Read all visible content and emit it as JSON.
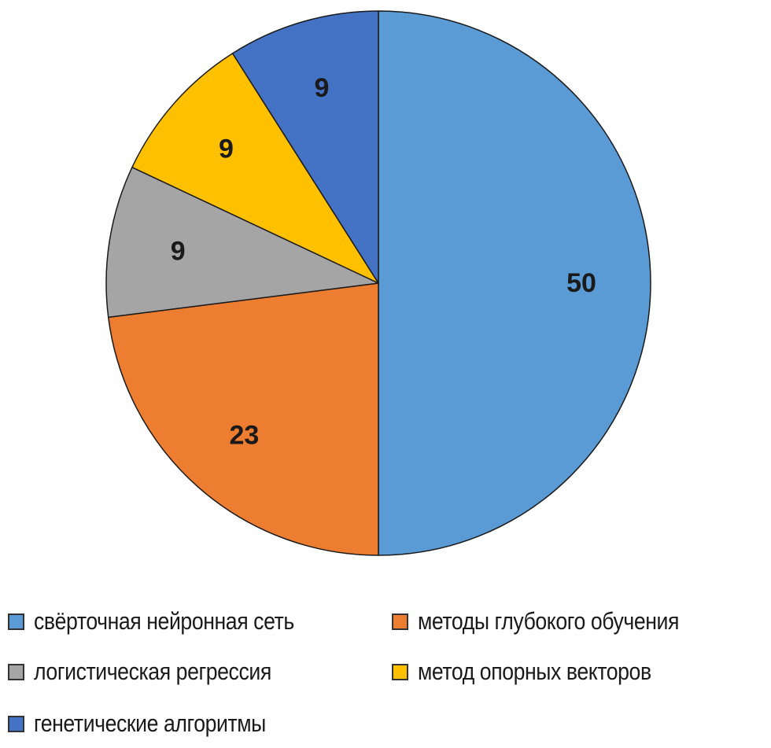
{
  "chart_data": {
    "type": "pie",
    "title": "",
    "start_angle": "12 o'clock",
    "direction": "clockwise",
    "legend_position": "bottom",
    "slices": [
      {
        "label": "свёрточная нейронная сеть",
        "value": 50,
        "color": "#5B9BD5"
      },
      {
        "label": "методы глубокого обучения",
        "value": 23,
        "color": "#ED7D31"
      },
      {
        "label": "логистическая регрессия",
        "value": 9,
        "color": "#A5A5A5"
      },
      {
        "label": "метод опорных векторов",
        "value": 9,
        "color": "#FFC000"
      },
      {
        "label": "генетические алгоритмы",
        "value": 9,
        "color": "#4472C4"
      }
    ]
  },
  "legend": {
    "items": [
      {
        "label": "свёрточная нейронная сеть",
        "color": "#5B9BD5"
      },
      {
        "label": "методы глубокого обучения",
        "color": "#ED7D31"
      },
      {
        "label": "логистическая регрессия",
        "color": "#A5A5A5"
      },
      {
        "label": "метод опорных векторов",
        "color": "#FFC000"
      },
      {
        "label": "генетические алгоритмы",
        "color": "#4472C4"
      }
    ]
  }
}
